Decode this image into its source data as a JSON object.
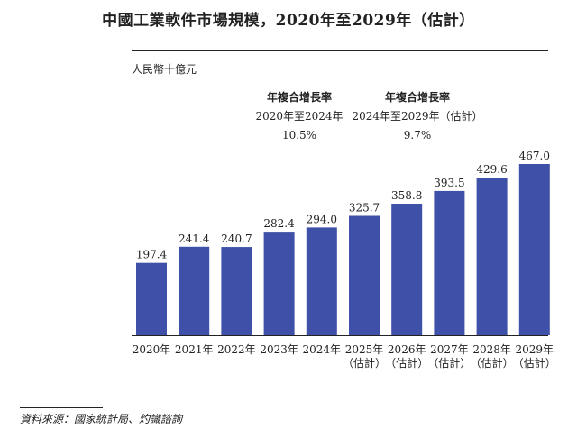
{
  "title": "中國工業軟件市場規模，2020年至2029年（估計）",
  "unit_label": "人民幣十億元",
  "cagr": [
    {
      "label": "年複合增長率",
      "period": "2020年至2024年",
      "value": "10.5%"
    },
    {
      "label": "年複合增長率",
      "period": "2024年至2029年（估計）",
      "value": "9.7%"
    }
  ],
  "source": "資料來源：國家統計局、灼識諮詢",
  "chart_data": {
    "type": "bar",
    "title": "中國工業軟件市場規模，2020年至2029年（估計）",
    "ylabel": "人民幣十億元",
    "categories": [
      [
        "2020年"
      ],
      [
        "2021年"
      ],
      [
        "2022年"
      ],
      [
        "2023年"
      ],
      [
        "2024年"
      ],
      [
        "2025年",
        "（估計）"
      ],
      [
        "2026年",
        "（估計）"
      ],
      [
        "2027年",
        "（估計）"
      ],
      [
        "2028年",
        "（估計）"
      ],
      [
        "2029年",
        "（估計）"
      ]
    ],
    "values": [
      197.4,
      241.4,
      240.7,
      282.4,
      294.0,
      325.7,
      358.8,
      393.5,
      429.6,
      467.0
    ],
    "value_labels": [
      "197.4",
      "241.4",
      "240.7",
      "282.4",
      "294.0",
      "325.7",
      "358.8",
      "393.5",
      "429.6",
      "467.0"
    ],
    "ylim": [
      0,
      467.0
    ],
    "bar_color": "#3f50a8",
    "grid": false,
    "legend": "none"
  }
}
